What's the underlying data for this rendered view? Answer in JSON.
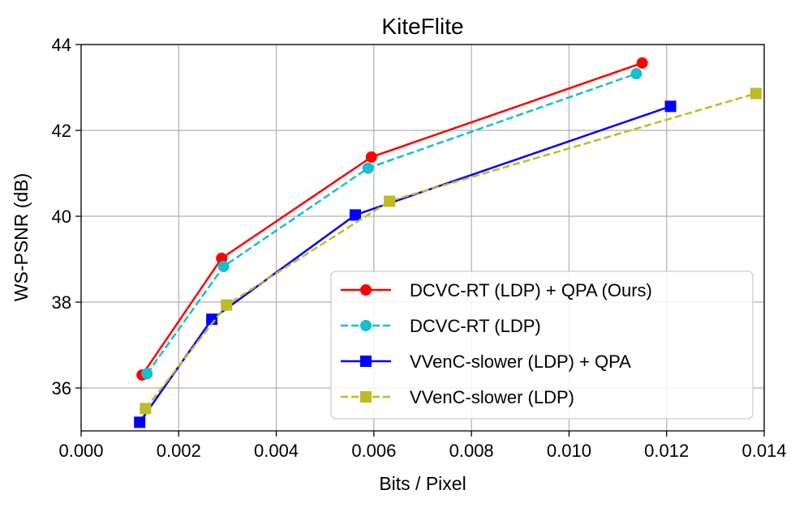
{
  "chart_data": {
    "type": "line",
    "title": "KiteFlite",
    "xlabel": "Bits / Pixel",
    "ylabel": "WS-PSNR (dB)",
    "xlim": [
      0.0,
      0.014
    ],
    "ylim": [
      35.0,
      44.0
    ],
    "xticks": [
      0.0,
      0.002,
      0.004,
      0.006,
      0.008,
      0.01,
      0.012,
      0.014
    ],
    "xtick_labels": [
      "0.000",
      "0.002",
      "0.004",
      "0.006",
      "0.008",
      "0.010",
      "0.012",
      "0.014"
    ],
    "yticks": [
      36,
      38,
      40,
      42,
      44
    ],
    "ytick_labels": [
      "36",
      "38",
      "40",
      "42",
      "44"
    ],
    "grid": true,
    "legend_position": "lower-right",
    "series": [
      {
        "name": "DCVC-RT (LDP) + QPA (Ours)",
        "color": "#ff0000",
        "linestyle": "solid",
        "marker": "circle",
        "x": [
          0.00125,
          0.00288,
          0.00595,
          0.0115
        ],
        "y": [
          36.3,
          39.02,
          41.38,
          43.57
        ]
      },
      {
        "name": "DCVC-RT (LDP)",
        "color": "#17becf",
        "linestyle": "dashed",
        "marker": "circle",
        "x": [
          0.00135,
          0.00292,
          0.00588,
          0.01138
        ],
        "y": [
          36.33,
          38.83,
          41.12,
          43.32
        ]
      },
      {
        "name": "VVenC-slower (LDP) + QPA",
        "color": "#0000ff",
        "linestyle": "solid",
        "marker": "square",
        "x": [
          0.0012,
          0.00268,
          0.00562,
          0.01208
        ],
        "y": [
          35.2,
          37.6,
          40.03,
          42.56
        ]
      },
      {
        "name": "VVenC-slower (LDP)",
        "color": "#bcbd22",
        "linestyle": "dashed",
        "marker": "square",
        "x": [
          0.00132,
          0.00298,
          0.00632,
          0.01383
        ],
        "y": [
          35.52,
          37.93,
          40.35,
          42.86
        ]
      }
    ]
  }
}
